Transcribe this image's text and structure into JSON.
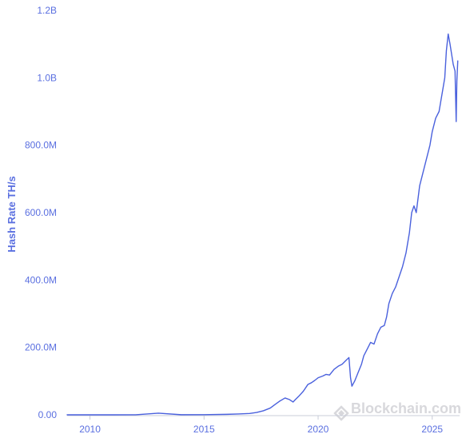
{
  "chart_data": {
    "type": "line",
    "title": "",
    "xlabel": "",
    "ylabel": "Hash Rate TH/s",
    "xlim": [
      2009.0,
      2026.2
    ],
    "ylim": [
      0,
      1200000000
    ],
    "x_ticks": [
      {
        "value": 2010,
        "label": "2010"
      },
      {
        "value": 2015,
        "label": "2015"
      },
      {
        "value": 2020,
        "label": "2020"
      },
      {
        "value": 2025,
        "label": "2025"
      }
    ],
    "y_ticks": [
      {
        "value": 0,
        "label": "0.00"
      },
      {
        "value": 200000000,
        "label": "200.0M"
      },
      {
        "value": 400000000,
        "label": "400.0M"
      },
      {
        "value": 600000000,
        "label": "600.0M"
      },
      {
        "value": 800000000,
        "label": "800.0M"
      },
      {
        "value": 1000000000,
        "label": "1.0B"
      },
      {
        "value": 1200000000,
        "label": "1.2B"
      }
    ],
    "grid": false,
    "legend": "none",
    "series": [
      {
        "name": "",
        "color": "#4a61dd",
        "x": [
          2009.0,
          2010.0,
          2011.0,
          2012.0,
          2013.0,
          2014.0,
          2015.0,
          2016.0,
          2016.5,
          2017.0,
          2017.3,
          2017.6,
          2017.9,
          2018.1,
          2018.3,
          2018.55,
          2018.75,
          2018.9,
          2019.0,
          2019.15,
          2019.35,
          2019.55,
          2019.7,
          2019.85,
          2020.0,
          2020.2,
          2020.35,
          2020.5,
          2020.7,
          2020.9,
          2021.05,
          2021.2,
          2021.35,
          2021.42,
          2021.48,
          2021.6,
          2021.75,
          2021.9,
          2022.0,
          2022.15,
          2022.3,
          2022.45,
          2022.6,
          2022.75,
          2022.9,
          2023.0,
          2023.1,
          2023.25,
          2023.4,
          2023.55,
          2023.7,
          2023.85,
          2024.0,
          2024.1,
          2024.2,
          2024.3,
          2024.45,
          2024.6,
          2024.75,
          2024.9,
          2025.0,
          2025.15,
          2025.3,
          2025.45,
          2025.55,
          2025.62,
          2025.7,
          2025.78,
          2025.85,
          2025.92,
          2026.0,
          2026.05,
          2026.08,
          2026.12
        ],
        "y": [
          0,
          0,
          0,
          50000,
          5000000,
          300000,
          400000,
          1500000,
          2500000,
          4000000,
          7000000,
          12000000,
          20000000,
          30000000,
          40000000,
          50000000,
          45000000,
          38000000,
          45000000,
          55000000,
          70000000,
          90000000,
          95000000,
          102000000,
          110000000,
          115000000,
          120000000,
          118000000,
          135000000,
          145000000,
          150000000,
          160000000,
          170000000,
          110000000,
          85000000,
          100000000,
          125000000,
          150000000,
          175000000,
          195000000,
          215000000,
          210000000,
          240000000,
          260000000,
          265000000,
          290000000,
          330000000,
          360000000,
          380000000,
          410000000,
          440000000,
          480000000,
          540000000,
          600000000,
          620000000,
          600000000,
          680000000,
          720000000,
          760000000,
          800000000,
          840000000,
          880000000,
          900000000,
          960000000,
          1000000000,
          1080000000,
          1130000000,
          1100000000,
          1070000000,
          1040000000,
          1020000000,
          870000000,
          990000000,
          1050000000
        ]
      }
    ],
    "watermark": "Blockchain.com",
    "colors": {
      "line": "#4a61dd",
      "axis": "#c8ccd8",
      "label": "#5a6fe0",
      "watermark": "#d8d8dc"
    }
  }
}
